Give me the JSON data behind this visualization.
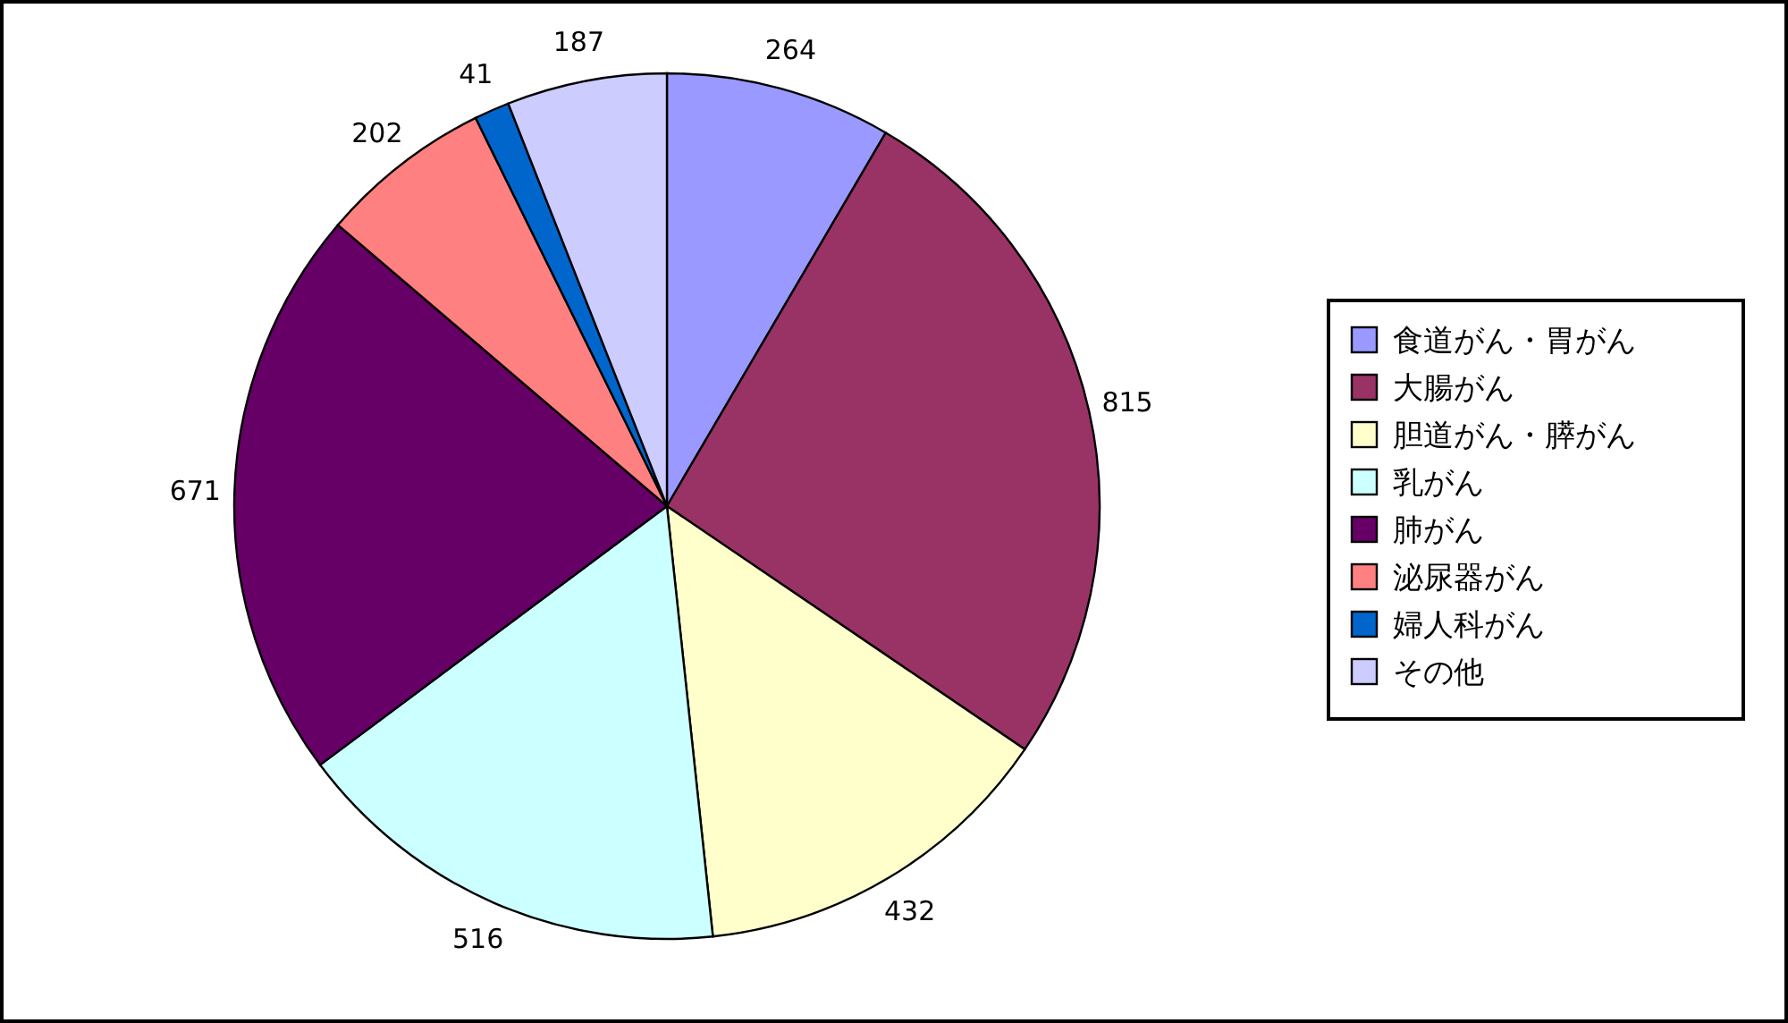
{
  "chart_data": {
    "type": "pie",
    "categories": [
      "食道がん・胃がん",
      "大腸がん",
      "胆道がん・膵がん",
      "乳がん",
      "肺がん",
      "泌尿器がん",
      "婦人科がん",
      "その他"
    ],
    "values": [
      264,
      815,
      432,
      516,
      671,
      202,
      41,
      187
    ],
    "colors": [
      "#9999ff",
      "#993366",
      "#ffffcc",
      "#ccffff",
      "#660066",
      "#ff8080",
      "#0066cc",
      "#ccccff"
    ],
    "data_labels": true,
    "legend": "right"
  }
}
